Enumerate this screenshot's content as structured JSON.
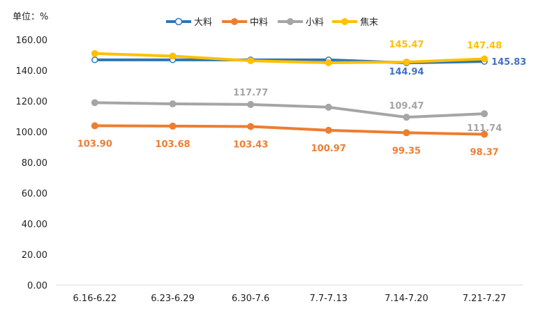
{
  "unit_label": "单位：%",
  "chart_data": {
    "type": "line",
    "categories": [
      "6.16-6.22",
      "6.23-6.29",
      "6.30-7.6",
      "7.7-7.13",
      "7.14-7.20",
      "7.21-7.27"
    ],
    "ylim": [
      0,
      160
    ],
    "yticks": [
      "0.00",
      "20.00",
      "40.00",
      "60.00",
      "80.00",
      "100.00",
      "120.00",
      "140.00",
      "160.00"
    ],
    "grid": false,
    "legend_position": "top",
    "series": [
      {
        "name": "大料",
        "color": "#2E75B6",
        "marker": "hollow-circle",
        "values": [
          146.9,
          146.9,
          146.9,
          146.9,
          144.94,
          145.83
        ],
        "labels": [
          null,
          null,
          null,
          null,
          "144.94",
          "145.83"
        ]
      },
      {
        "name": "中料",
        "color": "#ED7D31",
        "marker": "filled-circle",
        "values": [
          103.9,
          103.68,
          103.43,
          100.97,
          99.35,
          98.37
        ],
        "labels": [
          "103.90",
          "103.68",
          "103.43",
          "100.97",
          "99.35",
          "98.37"
        ]
      },
      {
        "name": "小料",
        "color": "#A5A5A5",
        "marker": "filled-circle",
        "values": [
          119.0,
          118.2,
          117.77,
          116.0,
          109.47,
          111.74
        ],
        "labels": [
          null,
          null,
          "117.77",
          null,
          "109.47",
          "111.74"
        ]
      },
      {
        "name": "焦末",
        "color": "#FFC000",
        "marker": "filled-circle",
        "values": [
          151.0,
          149.3,
          146.3,
          145.0,
          145.47,
          147.48
        ],
        "labels": [
          null,
          null,
          null,
          null,
          "145.47",
          "147.48"
        ]
      }
    ]
  }
}
